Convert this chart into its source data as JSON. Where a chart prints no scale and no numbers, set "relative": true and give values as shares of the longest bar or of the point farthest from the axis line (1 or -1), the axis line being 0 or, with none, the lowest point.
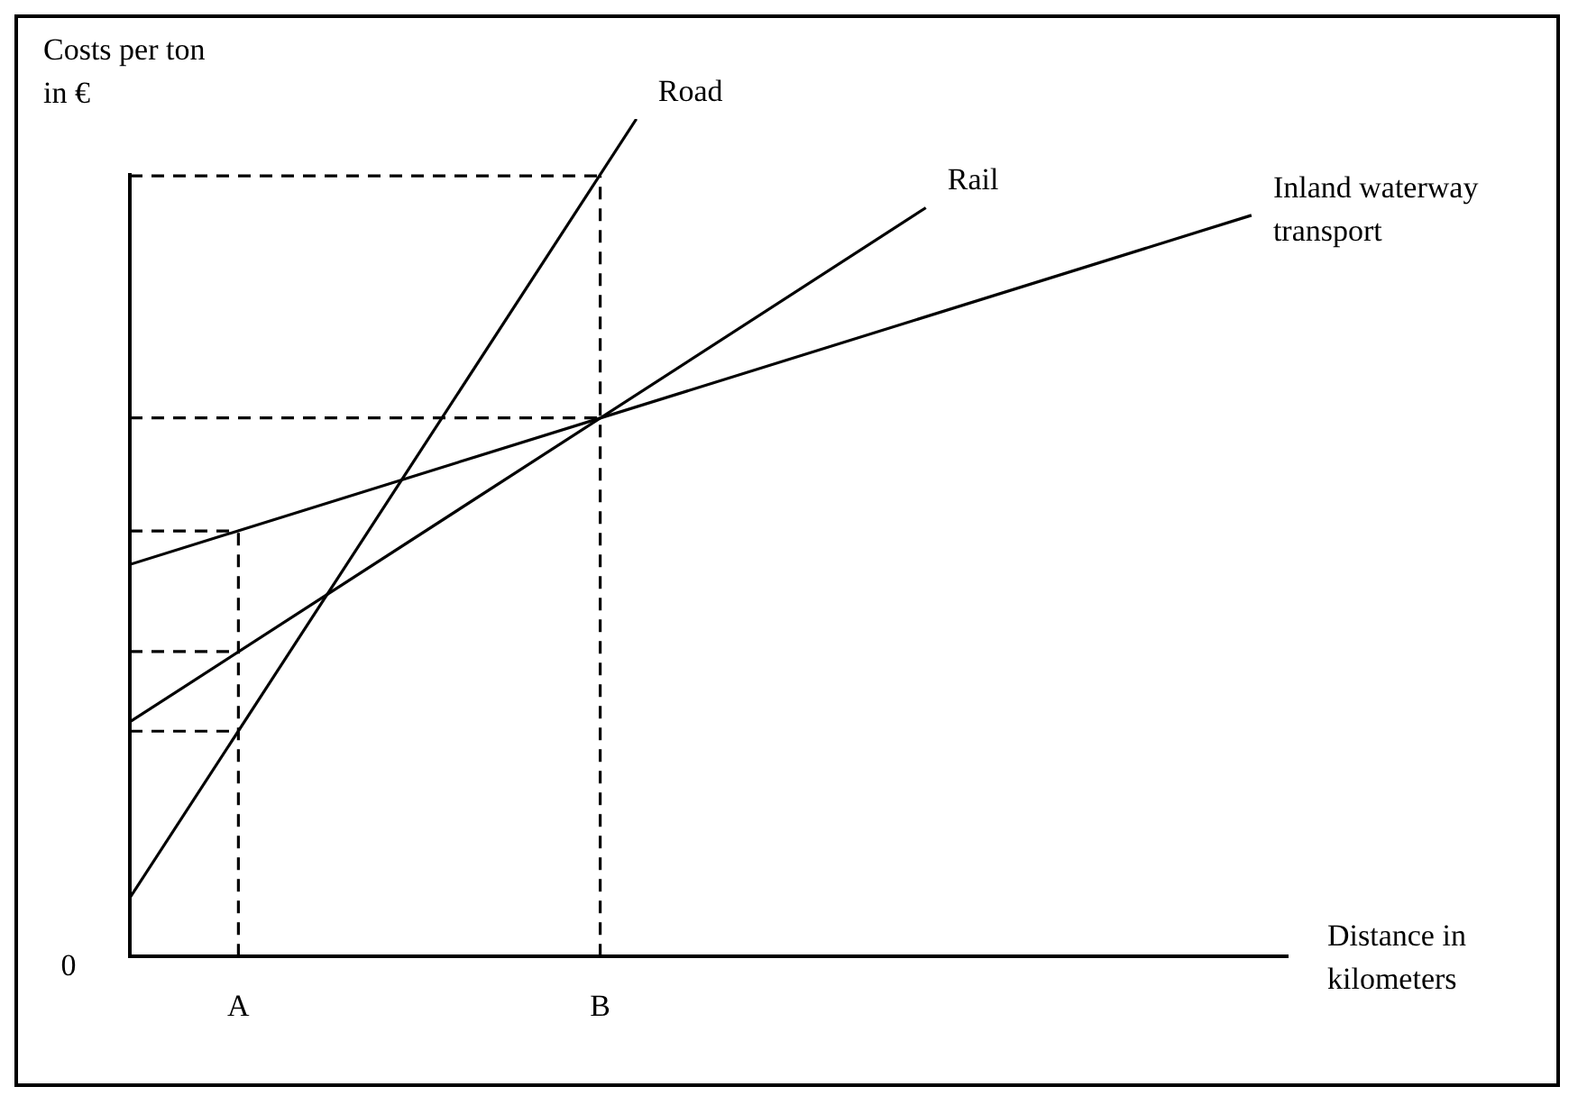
{
  "chart_data": {
    "type": "line",
    "relative": true,
    "ylabel": "Costs per ton in €",
    "xlabel": "Distance in kilometers",
    "annotations": [
      "0"
    ],
    "categories": [
      null,
      null,
      null,
      "A",
      null,
      null,
      null,
      null,
      null,
      null,
      null,
      null,
      null,
      "B",
      null,
      null,
      null,
      null,
      null,
      null,
      null,
      null,
      null,
      null,
      null,
      null,
      null,
      null,
      null,
      null,
      null,
      null,
      null
    ],
    "marker": "none",
    "grid": false,
    "legend": false,
    "series": [
      {
        "name": "Road",
        "color": "#000000",
        "values": [
          0.07,
          null,
          null,
          null,
          null,
          null,
          null,
          null,
          null,
          null,
          null,
          null,
          null,
          null,
          1,
          null,
          null,
          null,
          null,
          null,
          null,
          null,
          null,
          null,
          null,
          null,
          null,
          null,
          null,
          null,
          null,
          null,
          null
        ]
      },
      {
        "name": "Rail",
        "color": "#000000",
        "values": [
          0.28,
          null,
          null,
          null,
          null,
          null,
          null,
          null,
          null,
          null,
          null,
          null,
          null,
          null,
          null,
          null,
          null,
          null,
          null,
          null,
          null,
          null,
          0.894,
          null,
          null,
          null,
          null,
          null,
          null,
          null,
          null,
          null,
          null
        ]
      },
      {
        "name": "Inland waterway transport",
        "color": "#000000",
        "values": [
          0.468,
          null,
          null,
          null,
          null,
          null,
          null,
          null,
          null,
          null,
          null,
          null,
          null,
          null,
          null,
          null,
          null,
          null,
          null,
          null,
          null,
          null,
          null,
          null,
          null,
          null,
          null,
          null,
          null,
          null,
          null,
          0.885,
          null
        ]
      },
      {
        "color": "#000000",
        "line_style": "dashed",
        "x": [
          "A",
          "A"
        ],
        "values": [
          0,
          0.508
        ]
      },
      {
        "color": "#000000",
        "line_style": "dashed",
        "values": [
          0.508,
          null,
          null,
          0.508,
          null,
          null,
          null,
          null,
          null,
          null,
          null,
          null,
          null,
          null,
          null,
          null,
          null,
          null,
          null,
          null,
          null,
          null,
          null,
          null,
          null,
          null,
          null,
          null,
          null,
          null,
          null,
          null,
          null
        ]
      },
      {
        "color": "#000000",
        "line_style": "dashed",
        "values": [
          0.364,
          null,
          null,
          0.364,
          null,
          null,
          null,
          null,
          null,
          null,
          null,
          null,
          null,
          null,
          null,
          null,
          null,
          null,
          null,
          null,
          null,
          null,
          null,
          null,
          null,
          null,
          null,
          null,
          null,
          null,
          null,
          null,
          null
        ]
      },
      {
        "color": "#000000",
        "line_style": "dashed",
        "values": [
          0.269,
          null,
          null,
          0.269,
          null,
          null,
          null,
          null,
          null,
          null,
          null,
          null,
          null,
          null,
          null,
          null,
          null,
          null,
          null,
          null,
          null,
          null,
          null,
          null,
          null,
          null,
          null,
          null,
          null,
          null,
          null,
          null,
          null
        ]
      },
      {
        "color": "#000000",
        "line_style": "dashed",
        "x": [
          "B",
          "B"
        ],
        "values": [
          0,
          0.932
        ]
      },
      {
        "color": "#000000",
        "line_style": "dashed",
        "values": [
          0.932,
          null,
          null,
          null,
          null,
          null,
          null,
          null,
          null,
          null,
          null,
          null,
          null,
          0.932,
          null,
          null,
          null,
          null,
          null,
          null,
          null,
          null,
          null,
          null,
          null,
          null,
          null,
          null,
          null,
          null,
          null,
          null,
          null
        ]
      },
      {
        "color": "#000000",
        "line_style": "dashed",
        "values": [
          0.643,
          null,
          null,
          null,
          null,
          null,
          null,
          null,
          null,
          null,
          null,
          null,
          null,
          0.643,
          null,
          null,
          null,
          null,
          null,
          null,
          null,
          null,
          null,
          null,
          null,
          null,
          null,
          null,
          null,
          null,
          null,
          null,
          null
        ]
      }
    ]
  }
}
